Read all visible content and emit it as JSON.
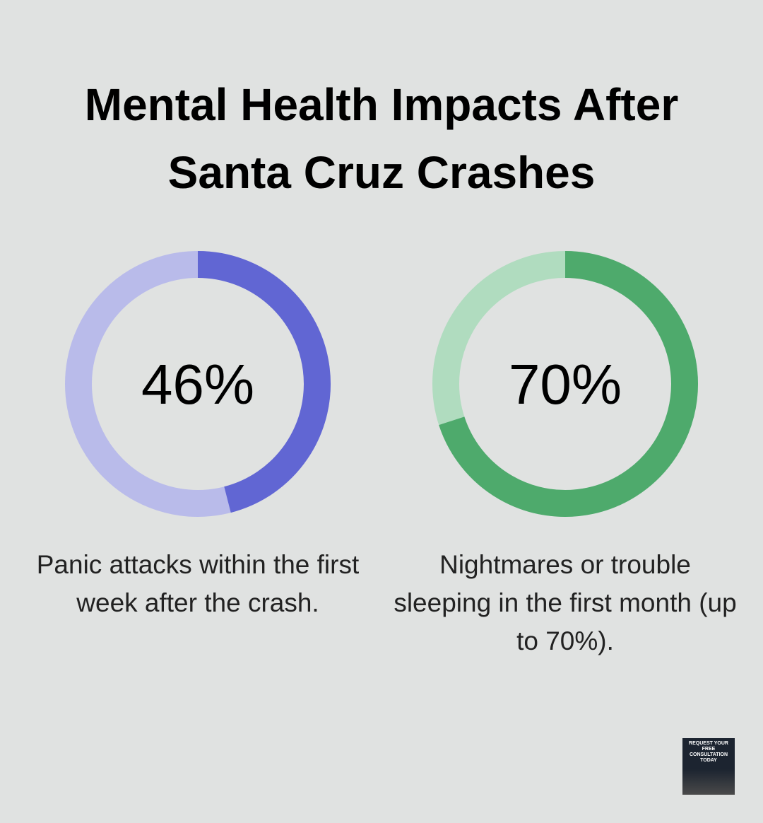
{
  "title": "Mental Health Impacts After Santa Cruz Crashes",
  "chart_data": [
    {
      "type": "donut",
      "values": [
        46
      ],
      "value_labels": [
        "46%"
      ],
      "color": "#6166d3",
      "track_color": "#b9bbea",
      "caption": "Panic attacks within the first week after the crash."
    },
    {
      "type": "donut",
      "values": [
        70
      ],
      "value_labels": [
        "70%"
      ],
      "color": "#4eaa6c",
      "track_color": "#b0dcbf",
      "caption": "Nightmares or trouble sleeping in the first month (up to 70%)."
    }
  ],
  "badge": "REQUEST YOUR FREE CONSULTATION TODAY"
}
